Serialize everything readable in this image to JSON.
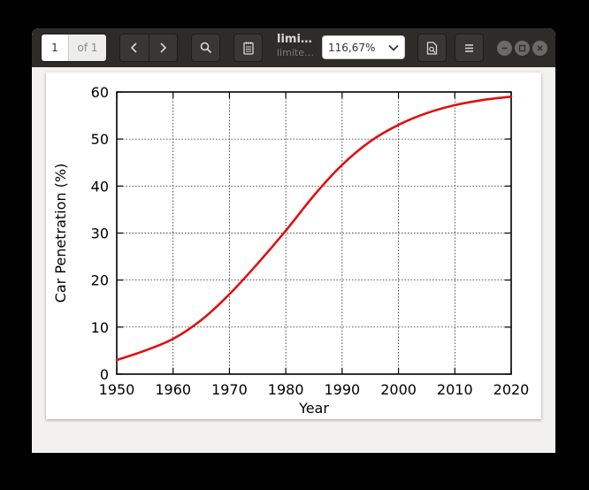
{
  "toolbar": {
    "page_current": "1",
    "page_of": "of 1",
    "title": "limi…",
    "subtitle": "limite…",
    "zoom": "116,67%",
    "icons": {
      "prev": "chevron-left-icon",
      "next": "chevron-right-icon",
      "search": "search-icon",
      "annotations": "annotations-icon",
      "zoom_dropdown": "chevron-down-icon",
      "sidebar": "document-icon",
      "menu": "hamburger-menu-icon",
      "minimize": "minimize-icon",
      "maximize": "maximize-icon",
      "close": "close-icon"
    }
  },
  "chart_data": {
    "type": "line",
    "title": "",
    "xlabel": "Year",
    "ylabel": "Car Penetration (%)",
    "xlim": [
      1950,
      2020
    ],
    "ylim": [
      0,
      60
    ],
    "xticks": [
      1950,
      1960,
      1970,
      1980,
      1990,
      2000,
      2010,
      2020
    ],
    "yticks": [
      0,
      10,
      20,
      30,
      40,
      50,
      60
    ],
    "grid": true,
    "series": [
      {
        "color": "#e01010",
        "x": [
          1950,
          1955,
          1960,
          1965,
          1970,
          1975,
          1980,
          1985,
          1990,
          1995,
          2000,
          2005,
          2010,
          2015,
          2020
        ],
        "y": [
          3,
          5,
          7.5,
          11.5,
          17,
          23.5,
          30.5,
          38,
          44.5,
          49.5,
          53,
          55.5,
          57.2,
          58.3,
          59
        ]
      }
    ]
  }
}
